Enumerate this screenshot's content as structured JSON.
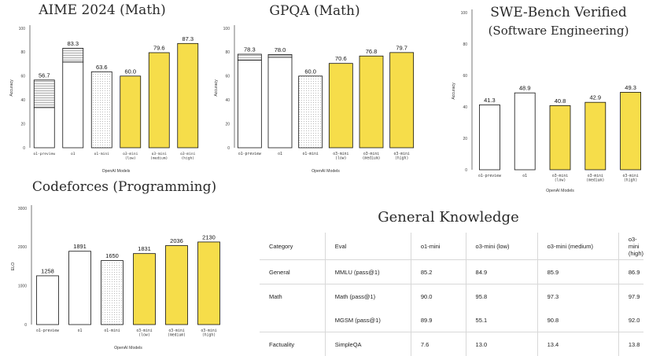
{
  "palette": {
    "yellow": "#f6dd4a",
    "outline": "#111111",
    "text": "#2a2a2a"
  },
  "chart_data": [
    {
      "id": "aime",
      "type": "bar",
      "title": "AIME 2024 (Math)",
      "xlabel": "OpenAI Models",
      "ylabel": "Accuracy",
      "ylim": [
        0,
        100
      ],
      "yticks": [
        0,
        20,
        40,
        60,
        80,
        100
      ],
      "categories": [
        "o1-preview",
        "o1",
        "o1-mini",
        "o3-mini\n(low)",
        "o3-mini\n(medium)",
        "o3-mini\n(high)"
      ],
      "values": [
        56.7,
        83.3,
        63.6,
        60.0,
        79.6,
        87.3
      ],
      "value_labels": [
        "56.7",
        "83.3",
        "63.6",
        "60.0",
        "79.6",
        "87.3"
      ],
      "base_values": [
        33.6,
        71.7,
        null,
        null,
        null,
        null
      ],
      "styles": [
        "white",
        "white",
        "dotted",
        "yellow",
        "yellow",
        "yellow"
      ]
    },
    {
      "id": "gpqa",
      "type": "bar",
      "title": "GPQA (Math)",
      "xlabel": "OpenAI Models",
      "ylabel": "Accuracy",
      "ylim": [
        0,
        100
      ],
      "yticks": [
        0,
        20,
        40,
        60,
        80,
        100
      ],
      "categories": [
        "o1-preview",
        "o1",
        "o1-mini",
        "o3-mini\n(low)",
        "o3-mini\n(medium)",
        "o3-mini\n(high)"
      ],
      "values": [
        78.3,
        78.0,
        60.0,
        70.6,
        76.8,
        79.7
      ],
      "value_labels": [
        "78.3",
        "78.0",
        "60.0",
        "70.6",
        "76.8",
        "79.7"
      ],
      "base_values": [
        73.3,
        75.7,
        null,
        null,
        null,
        null
      ],
      "styles": [
        "white",
        "white",
        "dotted",
        "yellow",
        "yellow",
        "yellow"
      ]
    },
    {
      "id": "swe",
      "type": "bar",
      "title": "SWE-Bench Verified",
      "subtitle": "(Software Engineering)",
      "xlabel": "OpenAI Models",
      "ylabel": "Accuracy",
      "ylim": [
        0,
        100
      ],
      "yticks": [
        0,
        20,
        40,
        60,
        80,
        100
      ],
      "categories": [
        "o1-preview",
        "o1",
        "o3-mini\n(low)",
        "o3-mini\n(medium)",
        "o3-mini\n(high)"
      ],
      "values": [
        41.3,
        48.9,
        40.8,
        42.9,
        49.3
      ],
      "value_labels": [
        "41.3",
        "48.9",
        "40.8",
        "42.9",
        "49.3"
      ],
      "base_values": [
        null,
        null,
        null,
        null,
        null
      ],
      "styles": [
        "white",
        "white",
        "yellow",
        "yellow",
        "yellow"
      ]
    },
    {
      "id": "codeforces",
      "type": "bar",
      "title": "Codeforces (Programming)",
      "xlabel": "OpenAI Models",
      "ylabel": "ELO",
      "ylim": [
        0,
        3000
      ],
      "yticks": [
        0,
        1000,
        2000,
        3000
      ],
      "categories": [
        "o1-preview",
        "o1",
        "o1-mini",
        "o3-mini\n(low)",
        "o3-mini\n(medium)",
        "o3-mini\n(high)"
      ],
      "values": [
        1258,
        1891,
        1650,
        1831,
        2036,
        2130
      ],
      "value_labels": [
        "1258",
        "1891",
        "1650",
        "1831",
        "2036",
        "2130"
      ],
      "base_values": [
        null,
        null,
        null,
        null,
        null,
        null
      ],
      "styles": [
        "white",
        "white",
        "dotted",
        "yellow",
        "yellow",
        "yellow"
      ]
    }
  ],
  "general_knowledge": {
    "title": "General Knowledge",
    "columns": [
      "Category",
      "Eval",
      "o1-mini",
      "o3-mini (low)",
      "o3-mini (medium)",
      "o3-mini (high)"
    ],
    "rows": [
      {
        "category": "General",
        "eval": "MMLU (pass@1)",
        "values": [
          "85.2",
          "84.9",
          "85.9",
          "86.9"
        ]
      },
      {
        "category": "Math",
        "eval": "Math (pass@1)",
        "values": [
          "90.0",
          "95.8",
          "97.3",
          "97.9"
        ]
      },
      {
        "category": "",
        "eval": "MGSM (pass@1)",
        "values": [
          "89.9",
          "55.1",
          "90.8",
          "92.0"
        ]
      },
      {
        "category": "Factuality",
        "eval": "SimpleQA",
        "values": [
          "7.6",
          "13.0",
          "13.4",
          "13.8"
        ]
      }
    ]
  }
}
